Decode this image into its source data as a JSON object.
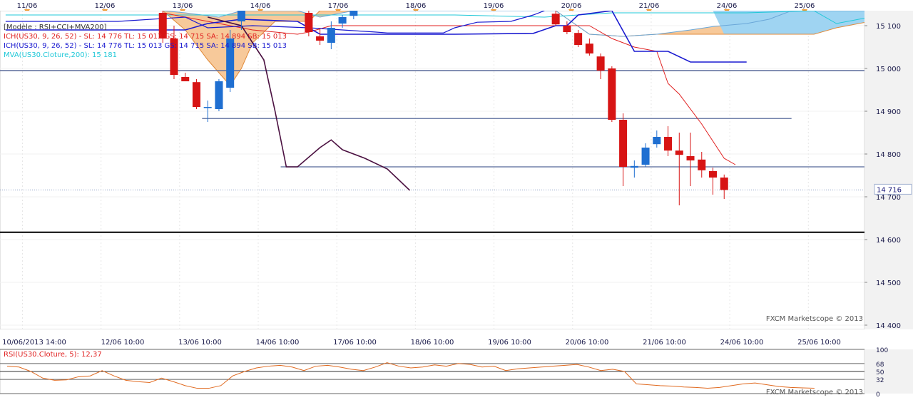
{
  "chart_data": [
    {
      "type": "candlestick",
      "top_date_labels": [
        "11/06",
        "12/06",
        "13/06",
        "14/06",
        "17/06",
        "18/06",
        "19/06",
        "20/06",
        "21/06",
        "24/06",
        "25/06"
      ],
      "bottom_time_labels": [
        "10/06/2013 14:00",
        "12/06 10:00",
        "13/06 10:00",
        "14/06 10:00",
        "17/06 10:00",
        "18/06 10:00",
        "19/06 10:00",
        "20/06 10:00",
        "21/06 10:00",
        "24/06 10:00",
        "25/06 10:00"
      ],
      "y_ticks": [
        14400,
        14500,
        14600,
        14700,
        14800,
        14900,
        15000,
        15100
      ],
      "y_tick_labels": [
        "14 400",
        "14 500",
        "14 600",
        "14 700",
        "14 800",
        "14 900",
        "15 000",
        "15 100"
      ],
      "ylim": [
        14390,
        15135
      ],
      "legend": [
        {
          "text": "[Modèle : RSI+CCI+MVA200]",
          "color": "#333333"
        },
        {
          "text": "ICH(US30, 9, 26, 52) -  SL: 14 776   TL: 15 013   GS: 14 715   SA: 14 894   SB: 15 013",
          "color": "#e02020"
        },
        {
          "text": "ICH(US30, 9, 26, 52) -  SL: 14 776   TL: 15 013   GS: 14 715   SA: 14 894   SB: 15 013",
          "color": "#1a1ad0"
        },
        {
          "text": "MVA(US30.Cloture,200): 15 181",
          "color": "#20c8d8"
        }
      ],
      "current_price_label": "14 716",
      "current_price": 14716,
      "watermark": "FXCM Marketscope © 2013",
      "horizontal_lines": [
        {
          "value": 14995,
          "color": "#5a6a9a"
        },
        {
          "value": 14883,
          "color": "#7080aa"
        },
        {
          "value": 14770,
          "color": "#7080aa"
        },
        {
          "value": 14617,
          "color": "#000000"
        }
      ],
      "candles": [
        {
          "x": 14,
          "o": 15130,
          "h": 15135,
          "l": 15060,
          "c": 15070
        },
        {
          "x": 15,
          "o": 15070,
          "h": 15100,
          "l": 14975,
          "c": 14985
        },
        {
          "x": 16,
          "o": 14980,
          "h": 14990,
          "l": 14970,
          "c": 14970
        },
        {
          "x": 17,
          "o": 14968,
          "h": 14975,
          "l": 14905,
          "c": 14910
        },
        {
          "x": 18,
          "o": 14910,
          "h": 14925,
          "l": 14875,
          "c": 14910
        },
        {
          "x": 19,
          "o": 14905,
          "h": 14975,
          "l": 14900,
          "c": 14970
        },
        {
          "x": 20,
          "o": 14955,
          "h": 15090,
          "l": 14945,
          "c": 15070
        },
        {
          "x": 21,
          "o": 15110,
          "h": 15140,
          "l": 15090,
          "c": 15135
        },
        {
          "x": 27,
          "o": 15130,
          "h": 15135,
          "l": 15075,
          "c": 15085
        },
        {
          "x": 28,
          "o": 15075,
          "h": 15095,
          "l": 15055,
          "c": 15065
        },
        {
          "x": 29,
          "o": 15060,
          "h": 15110,
          "l": 15045,
          "c": 15095
        },
        {
          "x": 30,
          "o": 15105,
          "h": 15125,
          "l": 15095,
          "c": 15120
        },
        {
          "x": 31,
          "o": 15123,
          "h": 15135,
          "l": 15115,
          "c": 15135
        },
        {
          "x": 49,
          "o": 15128,
          "h": 15135,
          "l": 15100,
          "c": 15103
        },
        {
          "x": 50,
          "o": 15100,
          "h": 15110,
          "l": 15080,
          "c": 15085
        },
        {
          "x": 51,
          "o": 15083,
          "h": 15090,
          "l": 15050,
          "c": 15055
        },
        {
          "x": 52,
          "o": 15058,
          "h": 15070,
          "l": 15030,
          "c": 15035
        },
        {
          "x": 53,
          "o": 15028,
          "h": 15035,
          "l": 14975,
          "c": 14995
        },
        {
          "x": 54,
          "o": 15000,
          "h": 15005,
          "l": 14875,
          "c": 14880
        },
        {
          "x": 55,
          "o": 14880,
          "h": 14895,
          "l": 14725,
          "c": 14770
        },
        {
          "x": 56,
          "o": 14768,
          "h": 14785,
          "l": 14745,
          "c": 14772
        },
        {
          "x": 57,
          "o": 14775,
          "h": 14825,
          "l": 14770,
          "c": 14815
        },
        {
          "x": 58,
          "o": 14823,
          "h": 14855,
          "l": 14815,
          "c": 14840
        },
        {
          "x": 59,
          "o": 14840,
          "h": 14865,
          "l": 14795,
          "c": 14808
        },
        {
          "x": 60,
          "o": 14808,
          "h": 14850,
          "l": 14680,
          "c": 14798
        },
        {
          "x": 61,
          "o": 14795,
          "h": 14850,
          "l": 14725,
          "c": 14785
        },
        {
          "x": 62,
          "o": 14787,
          "h": 14805,
          "l": 14745,
          "c": 14762
        },
        {
          "x": 63,
          "o": 14760,
          "h": 14768,
          "l": 14705,
          "c": 14745
        },
        {
          "x": 64,
          "o": 14745,
          "h": 14752,
          "l": 14695,
          "c": 14716
        }
      ],
      "tenkan_line": [
        [
          0,
          15110
        ],
        [
          10,
          15110
        ],
        [
          16,
          15120
        ],
        [
          18,
          15095
        ],
        [
          22,
          15100
        ],
        [
          27,
          15095
        ],
        [
          30,
          15090
        ],
        [
          33,
          15085
        ],
        [
          34,
          15083
        ],
        [
          39,
          15083
        ],
        [
          40,
          15095
        ],
        [
          42,
          15108
        ],
        [
          45,
          15110
        ],
        [
          47,
          15125
        ],
        [
          48,
          15135
        ]
      ],
      "kijun_line": [
        [
          0,
          15090
        ],
        [
          16,
          15090
        ],
        [
          18,
          15105
        ],
        [
          21,
          15115
        ],
        [
          26,
          15110
        ],
        [
          28,
          15080
        ],
        [
          35,
          15080
        ],
        [
          40,
          15080
        ],
        [
          47,
          15082
        ],
        [
          49,
          15100
        ],
        [
          50,
          15100
        ],
        [
          51,
          15125
        ],
        [
          54,
          15140
        ],
        [
          56,
          15040
        ],
        [
          59,
          15040
        ],
        [
          61,
          15015
        ],
        [
          66,
          15015
        ]
      ],
      "chikou_line": [
        [
          18,
          15120
        ],
        [
          21,
          15100
        ],
        [
          23,
          15020
        ],
        [
          24,
          14900
        ],
        [
          25,
          14770
        ],
        [
          26,
          14770
        ],
        [
          28,
          14815
        ],
        [
          29,
          14833
        ],
        [
          30,
          14810
        ],
        [
          32,
          14790
        ],
        [
          34,
          14765
        ],
        [
          35,
          14740
        ],
        [
          36,
          14715
        ]
      ],
      "ma200_line": [
        [
          0,
          15125
        ],
        [
          40,
          15125
        ],
        [
          48,
          15120
        ],
        [
          54,
          15130
        ],
        [
          66,
          15130
        ],
        [
          72,
          15135
        ],
        [
          74,
          15105
        ],
        [
          77,
          15120
        ]
      ],
      "red_ma_line": [
        [
          14,
          15130
        ],
        [
          22,
          15090
        ],
        [
          26,
          15080
        ],
        [
          27,
          15085
        ],
        [
          29,
          15100
        ],
        [
          33,
          15100
        ],
        [
          40,
          15100
        ],
        [
          48,
          15100
        ],
        [
          52,
          15100
        ],
        [
          54,
          15070
        ],
        [
          56,
          15050
        ],
        [
          58,
          15040
        ],
        [
          59,
          14965
        ],
        [
          60,
          14940
        ],
        [
          62,
          14870
        ],
        [
          64,
          14790
        ],
        [
          65,
          14775
        ]
      ],
      "cloud_band_a": [
        [
          14,
          15135
        ],
        [
          16,
          15130
        ],
        [
          19,
          15120
        ],
        [
          21,
          15135
        ],
        [
          26,
          15135
        ],
        [
          28,
          15120
        ],
        [
          31,
          15135
        ],
        [
          49,
          15135
        ],
        [
          52,
          15080
        ],
        [
          55,
          15075
        ],
        [
          58,
          15080
        ],
        [
          61,
          15090
        ],
        [
          63,
          15098
        ],
        [
          66,
          15105
        ],
        [
          68,
          15115
        ],
        [
          70,
          15135
        ],
        [
          75,
          15135
        ],
        [
          77,
          15135
        ]
      ],
      "cloud_band_b": [
        [
          14,
          15135
        ],
        [
          16,
          15090
        ],
        [
          18,
          15020
        ],
        [
          20,
          14960
        ],
        [
          21,
          15000
        ],
        [
          22,
          15060
        ],
        [
          24,
          15110
        ],
        [
          27,
          15110
        ],
        [
          28,
          15135
        ],
        [
          31,
          15135
        ],
        [
          49,
          15135
        ],
        [
          52,
          15080
        ],
        [
          55,
          15075
        ],
        [
          58,
          15080
        ],
        [
          61,
          15080
        ],
        [
          64,
          15080
        ],
        [
          66,
          15080
        ],
        [
          68,
          15080
        ],
        [
          70,
          15080
        ],
        [
          72,
          15080
        ],
        [
          74,
          15095
        ],
        [
          77,
          15110
        ]
      ],
      "x_count": 77
    },
    {
      "type": "line",
      "title": "RSI(US30.Cloture, 5): 12,37",
      "watermark": "FXCM Marketscope © 2013",
      "y_ticks": [
        0,
        32,
        50,
        68,
        100
      ],
      "ylim": [
        0,
        100
      ],
      "series": [
        {
          "values": [
            62,
            60,
            50,
            35,
            30,
            31,
            38,
            40,
            52,
            40,
            30,
            27,
            25,
            35,
            27,
            18,
            12,
            12,
            18,
            40,
            50,
            58,
            62,
            64,
            60,
            52,
            62,
            64,
            60,
            55,
            52,
            60,
            70,
            62,
            58,
            60,
            65,
            62,
            68,
            66,
            60,
            62,
            52,
            56,
            58,
            60,
            62,
            64,
            66,
            60,
            52,
            55,
            50,
            22,
            20,
            18,
            17,
            15,
            14,
            12,
            14,
            18,
            22,
            24,
            20,
            16,
            14,
            13,
            12
          ]
        }
      ]
    }
  ]
}
